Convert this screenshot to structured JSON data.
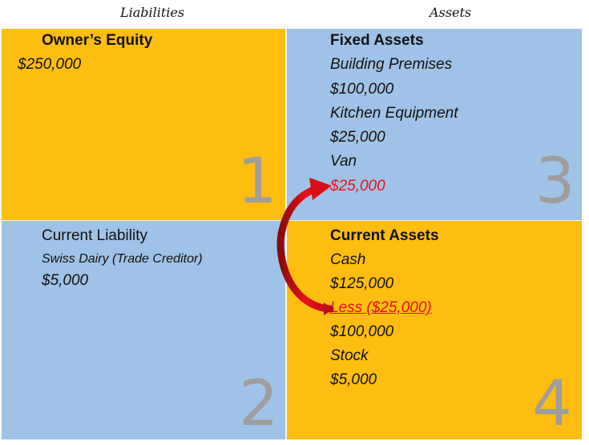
{
  "headers": {
    "liabilities": "Liabilities",
    "assets": "Assets"
  },
  "quadrants": {
    "q1": {
      "number": "1",
      "title": "Owner’s Equity",
      "value": "$250,000"
    },
    "q2": {
      "number": "2",
      "title": "Current Liability",
      "line1": "Swiss Dairy (Trade Creditor)",
      "value": "$5,000"
    },
    "q3": {
      "number": "3",
      "title": "Fixed Assets",
      "items": [
        "Building Premises",
        "$100,000",
        "Kitchen Equipment",
        "$25,000",
        "Van",
        "$25,000"
      ]
    },
    "q4": {
      "number": "4",
      "title": "Current Assets",
      "items": [
        "Cash",
        "$125,000",
        "Less ($25,000)",
        "$100,000",
        "Stock",
        "$5,000"
      ]
    }
  },
  "colors": {
    "orange": "#fdbd11",
    "blue": "#9fc3e6",
    "red": "#e8101a",
    "number_gray": "#9e9e9e"
  }
}
